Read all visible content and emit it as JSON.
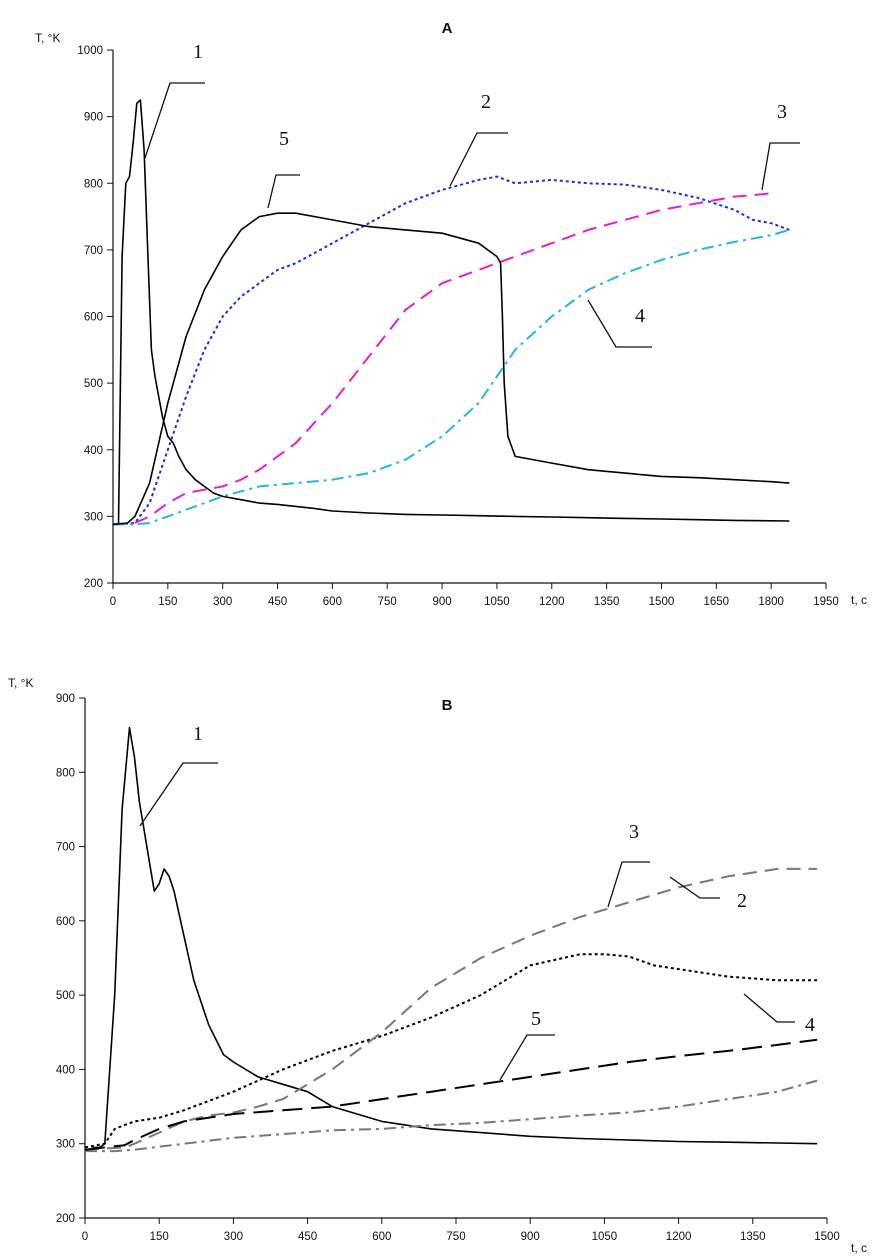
{
  "chart_data": [
    {
      "type": "line",
      "title": "A",
      "ylabel": "T, °K",
      "xlabel": "t, c",
      "xlim": [
        0,
        1950
      ],
      "ylim": [
        200,
        1000
      ],
      "xticks": [
        0,
        150,
        300,
        450,
        600,
        750,
        900,
        1050,
        1200,
        1350,
        1500,
        1650,
        1800,
        1950
      ],
      "yticks": [
        200,
        300,
        400,
        500,
        600,
        700,
        800,
        900,
        1000
      ],
      "grid": false,
      "series": [
        {
          "name": "1",
          "style": "solid",
          "color": "#000000",
          "x": [
            0,
            15,
            25,
            35,
            45,
            55,
            65,
            75,
            85,
            95,
            105,
            115,
            125,
            135,
            150,
            165,
            180,
            200,
            225,
            250,
            275,
            300,
            350,
            400,
            450,
            500,
            550,
            600,
            700,
            800,
            900,
            1000,
            1100,
            1200,
            1300,
            1400,
            1500,
            1600,
            1700,
            1850
          ],
          "y": [
            288,
            288,
            690,
            800,
            810,
            860,
            920,
            925,
            850,
            700,
            550,
            510,
            480,
            450,
            420,
            410,
            390,
            370,
            355,
            345,
            335,
            330,
            325,
            320,
            318,
            315,
            312,
            308,
            305,
            303,
            302,
            301,
            300,
            299,
            298,
            297,
            296,
            295,
            294,
            293
          ]
        },
        {
          "name": "2",
          "style": "dotted",
          "color": "#1a2ae0",
          "x": [
            0,
            60,
            100,
            150,
            200,
            250,
            300,
            350,
            400,
            450,
            500,
            600,
            700,
            800,
            900,
            1000,
            1050,
            1100,
            1200,
            1300,
            1400,
            1500,
            1600,
            1700,
            1750,
            1800,
            1850
          ],
          "y": [
            288,
            290,
            320,
            400,
            480,
            550,
            600,
            630,
            650,
            670,
            680,
            710,
            740,
            770,
            790,
            805,
            810,
            800,
            805,
            800,
            798,
            790,
            778,
            760,
            745,
            740,
            730
          ]
        },
        {
          "name": "3",
          "style": "dashed",
          "color": "#e020d0",
          "x": [
            0,
            60,
            100,
            150,
            200,
            250,
            300,
            350,
            400,
            450,
            500,
            600,
            700,
            800,
            900,
            1000,
            1100,
            1200,
            1300,
            1400,
            1500,
            1600,
            1700,
            1750,
            1800
          ],
          "y": [
            288,
            290,
            300,
            320,
            335,
            340,
            345,
            355,
            370,
            390,
            410,
            470,
            540,
            610,
            650,
            670,
            690,
            710,
            730,
            745,
            760,
            770,
            780,
            782,
            785
          ]
        },
        {
          "name": "4",
          "style": "dashdot",
          "color": "#20b8e0",
          "x": [
            0,
            60,
            100,
            150,
            200,
            300,
            400,
            500,
            600,
            700,
            800,
            900,
            1000,
            1050,
            1100,
            1200,
            1300,
            1400,
            1500,
            1600,
            1700,
            1800,
            1850
          ],
          "y": [
            288,
            288,
            290,
            300,
            310,
            330,
            345,
            350,
            355,
            365,
            385,
            420,
            470,
            510,
            550,
            600,
            640,
            665,
            685,
            700,
            712,
            722,
            730
          ]
        },
        {
          "name": "5",
          "style": "solid",
          "color": "#000000",
          "x": [
            0,
            40,
            60,
            100,
            150,
            200,
            250,
            300,
            350,
            400,
            450,
            500,
            600,
            700,
            800,
            900,
            1000,
            1050,
            1060,
            1065,
            1070,
            1080,
            1100,
            1200,
            1300,
            1400,
            1500,
            1600,
            1700,
            1800,
            1850
          ],
          "y": [
            288,
            290,
            300,
            350,
            470,
            570,
            640,
            690,
            730,
            750,
            755,
            755,
            745,
            735,
            730,
            725,
            710,
            690,
            680,
            600,
            500,
            420,
            390,
            380,
            370,
            365,
            360,
            358,
            355,
            352,
            350
          ]
        }
      ],
      "annotations": [
        "1",
        "2",
        "3",
        "4",
        "5"
      ]
    },
    {
      "type": "line",
      "title": "B",
      "ylabel": "T, °K",
      "xlabel": "t, c",
      "xlim": [
        0,
        1500
      ],
      "ylim": [
        200,
        900
      ],
      "xticks": [
        0,
        150,
        300,
        450,
        600,
        750,
        900,
        1050,
        1200,
        1350,
        1500
      ],
      "yticks": [
        200,
        300,
        400,
        500,
        600,
        700,
        800,
        900
      ],
      "grid": false,
      "series": [
        {
          "name": "1",
          "style": "solid",
          "color": "#000000",
          "x": [
            0,
            20,
            30,
            40,
            60,
            75,
            90,
            100,
            110,
            120,
            130,
            140,
            150,
            160,
            170,
            180,
            200,
            220,
            250,
            280,
            300,
            350,
            400,
            450,
            500,
            600,
            700,
            800,
            900,
            1000,
            1100,
            1200,
            1300,
            1400,
            1480
          ],
          "y": [
            290,
            295,
            295,
            300,
            500,
            750,
            860,
            820,
            760,
            720,
            680,
            640,
            650,
            670,
            660,
            640,
            580,
            520,
            460,
            420,
            410,
            390,
            380,
            370,
            350,
            330,
            320,
            315,
            310,
            307,
            305,
            303,
            302,
            301,
            300
          ]
        },
        {
          "name": "2",
          "style": "dotted",
          "color": "#000000",
          "x": [
            0,
            40,
            60,
            80,
            100,
            150,
            200,
            300,
            400,
            500,
            600,
            700,
            800,
            900,
            1000,
            1050,
            1100,
            1150,
            1200,
            1300,
            1400,
            1480
          ],
          "y": [
            295,
            300,
            320,
            325,
            330,
            335,
            345,
            370,
            400,
            425,
            445,
            470,
            500,
            540,
            555,
            555,
            552,
            540,
            535,
            525,
            520,
            520
          ]
        },
        {
          "name": "3",
          "style": "dashed",
          "color": "#777777",
          "x": [
            0,
            80,
            100,
            150,
            200,
            250,
            300,
            350,
            400,
            450,
            500,
            600,
            700,
            800,
            900,
            1000,
            1100,
            1200,
            1300,
            1400,
            1480
          ],
          "y": [
            292,
            295,
            300,
            315,
            330,
            338,
            342,
            350,
            360,
            380,
            400,
            450,
            510,
            550,
            580,
            605,
            625,
            645,
            660,
            670,
            670
          ]
        },
        {
          "name": "4",
          "style": "dashdot",
          "color": "#777777",
          "x": [
            0,
            60,
            100,
            200,
            300,
            400,
            500,
            600,
            700,
            800,
            900,
            1000,
            1100,
            1200,
            1300,
            1400,
            1480
          ],
          "y": [
            290,
            290,
            292,
            300,
            308,
            313,
            318,
            320,
            325,
            328,
            333,
            338,
            342,
            350,
            360,
            370,
            385
          ]
        },
        {
          "name": "5",
          "style": "longdash",
          "color": "#000000",
          "x": [
            0,
            80,
            100,
            150,
            200,
            300,
            400,
            500,
            600,
            700,
            800,
            900,
            1000,
            1100,
            1200,
            1300,
            1400,
            1480
          ],
          "y": [
            292,
            298,
            305,
            320,
            330,
            340,
            345,
            350,
            360,
            370,
            380,
            390,
            400,
            410,
            418,
            425,
            433,
            440
          ]
        }
      ],
      "annotations": [
        "1",
        "2",
        "3",
        "4",
        "5"
      ]
    }
  ]
}
